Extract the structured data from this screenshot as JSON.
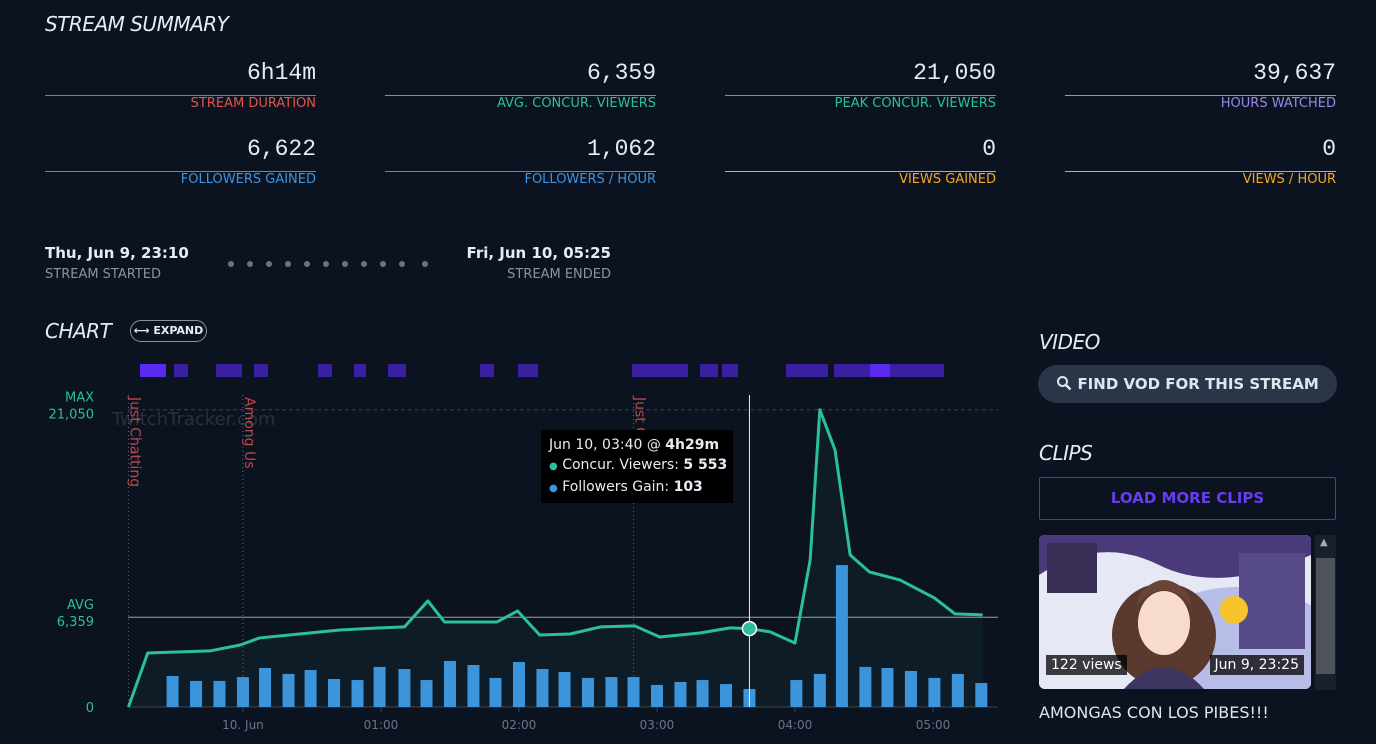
{
  "summary": {
    "title": "STREAM SUMMARY",
    "stats": [
      {
        "value": "6h14m",
        "label": "STREAM DURATION",
        "color": "#e0564a"
      },
      {
        "value": "6,359",
        "label": "AVG. CONCUR. VIEWERS",
        "color": "#2bbf9e"
      },
      {
        "value": "21,050",
        "label": "PEAK CONCUR. VIEWERS",
        "color": "#2bbf9e"
      },
      {
        "value": "39,637",
        "label": "HOURS WATCHED",
        "color": "#9a88e6"
      },
      {
        "value": "6,622",
        "label": "FOLLOWERS GAINED",
        "color": "#3d93e0"
      },
      {
        "value": "1,062",
        "label": "FOLLOWERS / HOUR",
        "color": "#3d93e0"
      },
      {
        "value": "0",
        "label": "VIEWS GAINED",
        "color": "#f5a623"
      },
      {
        "value": "0",
        "label": "VIEWS / HOUR",
        "color": "#f5a623"
      }
    ]
  },
  "timeline": {
    "start": {
      "date": "Thu, Jun 9, 23:10",
      "label": "STREAM STARTED"
    },
    "end": {
      "date": "Fri, Jun 10, 05:25",
      "label": "STREAM ENDED"
    }
  },
  "chart_section": {
    "title": "CHART",
    "expand": "EXPAND",
    "watermark": "TwitchTracker.com",
    "tooltip": {
      "time": "Jun 10, 03:40 @",
      "elapsed": "4h29m",
      "rows": [
        {
          "label": "Concur. Viewers:",
          "value": "5 553"
        },
        {
          "label": "Followers Gain:",
          "value": "103"
        }
      ]
    }
  },
  "chart_data": {
    "type": "line",
    "xlim": [
      -0.833,
      5.471
    ],
    "ylim": [
      0,
      22800
    ],
    "y2lim": [
      0,
      1840
    ],
    "xticks": [
      {
        "value": 0,
        "label": "10. Jun"
      },
      {
        "value": 1,
        "label": "01:00"
      },
      {
        "value": 2,
        "label": "02:00"
      },
      {
        "value": 3,
        "label": "03:00"
      },
      {
        "value": 4,
        "label": "04:00"
      },
      {
        "value": 5,
        "label": "05:00"
      }
    ],
    "yticks": [
      0
    ],
    "reference_lines": [
      {
        "name": "AVG",
        "value": 6359,
        "label": "6,359"
      },
      {
        "name": "MAX",
        "value": 21050,
        "label": "21,050"
      }
    ],
    "annotations": [
      {
        "label": "Just Chatting",
        "x": -0.83
      },
      {
        "label": "Among Us",
        "x": 0
      },
      {
        "label": "Just Chatting",
        "x": 2.83
      }
    ],
    "series": [
      {
        "name": "Concur. Viewers",
        "color": "#2bbf9e",
        "x": [
          -0.83,
          -0.69,
          -0.24,
          -0.02,
          0.12,
          0.41,
          0.7,
          0.99,
          1.17,
          1.34,
          1.46,
          1.64,
          1.84,
          1.99,
          2.15,
          2.37,
          2.59,
          2.84,
          3.02,
          3.31,
          3.53,
          3.67,
          3.82,
          4.0,
          4.11,
          4.18,
          4.29,
          4.4,
          4.54,
          4.76,
          5.01,
          5.16,
          5.36
        ],
        "values": [
          0,
          3820,
          3970,
          4390,
          4890,
          5170,
          5450,
          5600,
          5670,
          7510,
          6020,
          6020,
          6020,
          6800,
          5100,
          5170,
          5670,
          5740,
          4960,
          5240,
          5600,
          5553,
          5320,
          4530,
          10410,
          21050,
          18200,
          10760,
          9560,
          9000,
          7720,
          6590,
          6520
        ]
      },
      {
        "name": "Followers Gain",
        "color": "#3d93e0",
        "axis": "y2",
        "x": [
          -0.51,
          -0.34,
          -0.17,
          0,
          0.16,
          0.33,
          0.49,
          0.66,
          0.83,
          0.99,
          1.17,
          1.33,
          1.5,
          1.67,
          1.83,
          2.0,
          2.17,
          2.33,
          2.5,
          2.67,
          2.83,
          3.0,
          3.17,
          3.33,
          3.5,
          3.67,
          4.01,
          4.18,
          4.34,
          4.51,
          4.67,
          4.84,
          5.01,
          5.18,
          5.35
        ],
        "values": [
          177,
          149,
          149,
          171,
          223,
          189,
          211,
          160,
          154,
          229,
          217,
          154,
          263,
          240,
          166,
          257,
          217,
          200,
          166,
          171,
          171,
          126,
          143,
          154,
          131,
          103,
          154,
          189,
          811,
          229,
          223,
          206,
          166,
          189,
          137
        ]
      }
    ],
    "hover_index": 21
  },
  "sidebar": {
    "video_title": "VIDEO",
    "find_vod": "FIND VOD FOR THIS STREAM",
    "clips_title": "CLIPS",
    "load_more": "LOAD MORE CLIPS",
    "clip": {
      "views": "122 views",
      "date": "Jun 9, 23:25",
      "title": "AMONGAS CON LOS PIBES!!!"
    }
  }
}
